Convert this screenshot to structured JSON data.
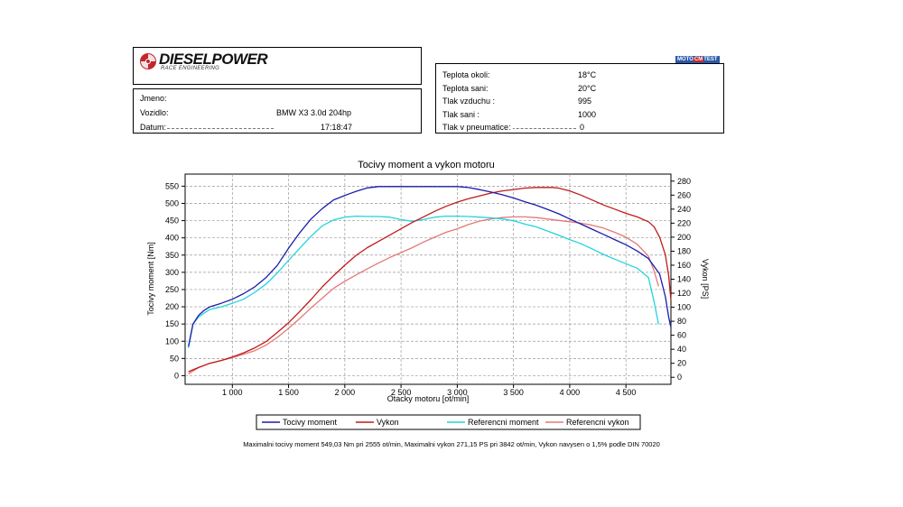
{
  "header": {
    "brand": "DIESELPOWER",
    "brand_sub": "RACE ENGINEERING",
    "badge": "MOTO",
    "badge_mid": "CM",
    "badge_end": "TEST"
  },
  "vehicle": {
    "jmeno_label": "Jmeno:",
    "jmeno_value": "",
    "vozidlo_label": "Vozidlo:",
    "vozidlo_value": "BMW X3 3.0d 204hp",
    "datum_label": "Datum:",
    "datum_value": "17:18:47"
  },
  "conditions": [
    {
      "label": "Teplota okoli:",
      "value": "18°C"
    },
    {
      "label": "Teplota sani:",
      "value": "20°C"
    },
    {
      "label": "Tlak vzduchu :",
      "value": "995"
    },
    {
      "label": "Tlak sani :",
      "value": "1000"
    },
    {
      "label": "Tlak v pneumatice:",
      "value": "0"
    }
  ],
  "colors": {
    "torque": "#1c1caa",
    "power": "#c01a1a",
    "ref_torque": "#22d4dc",
    "ref_power": "#e67878",
    "grid": "#9a9a9a"
  },
  "footer": "Maximalni tocivy moment 549,03 Nm pri 2555 ot/min,  Maximalni vykon 271,15 PS pri 3842 ot/min,  Vykon navysen o 1,5% podle DIN 70020",
  "chart_data": {
    "type": "line",
    "title": "Tocivy moment a vykon motoru",
    "xlabel": "Otacky motoru [ot/min]",
    "ylabel_left": "Tocivy moment [Nm]",
    "ylabel_right": "Vykon [PS]",
    "xlim": [
      580,
      4900
    ],
    "ylim_left": [
      -25,
      585
    ],
    "ylim_right": [
      -10,
      290
    ],
    "x_ticks": [
      1000,
      1500,
      2000,
      2500,
      3000,
      3500,
      4000,
      4500
    ],
    "x_tick_labels": [
      "1 000",
      "1 500",
      "2 000",
      "2 500",
      "3 000",
      "3 500",
      "4 000",
      "4 500"
    ],
    "y_ticks_left": [
      0,
      50,
      100,
      150,
      200,
      250,
      300,
      350,
      400,
      450,
      500,
      550
    ],
    "y_ticks_right": [
      0,
      20,
      40,
      60,
      80,
      100,
      120,
      140,
      160,
      180,
      200,
      220,
      240,
      260,
      280
    ],
    "grid": true,
    "legend_position": "bottom",
    "series": [
      {
        "name": "Tocivy moment",
        "axis": "left",
        "x": [
          610,
          650,
          700,
          750,
          800,
          900,
          1000,
          1100,
          1200,
          1300,
          1400,
          1500,
          1600,
          1700,
          1800,
          1900,
          2000,
          2100,
          2200,
          2300,
          2400,
          2500,
          2600,
          2700,
          2800,
          2900,
          3000,
          3100,
          3200,
          3300,
          3400,
          3500,
          3600,
          3700,
          3800,
          3900,
          4000,
          4100,
          4200,
          4300,
          4400,
          4500,
          4600,
          4700,
          4800,
          4850,
          4880,
          4900
        ],
        "y": [
          85,
          150,
          175,
          190,
          200,
          210,
          222,
          238,
          258,
          285,
          320,
          370,
          415,
          455,
          485,
          510,
          523,
          535,
          545,
          549,
          549,
          549,
          549,
          549,
          549,
          549,
          549,
          546,
          540,
          533,
          525,
          516,
          505,
          495,
          483,
          470,
          455,
          440,
          425,
          410,
          395,
          380,
          362,
          340,
          295,
          230,
          170,
          140
        ]
      },
      {
        "name": "Vykon",
        "axis": "right",
        "x": [
          610,
          700,
          800,
          900,
          1000,
          1100,
          1200,
          1300,
          1400,
          1500,
          1600,
          1700,
          1800,
          1900,
          2000,
          2100,
          2200,
          2300,
          2400,
          2500,
          2600,
          2700,
          2800,
          2900,
          3000,
          3100,
          3200,
          3300,
          3400,
          3500,
          3600,
          3700,
          3800,
          3850,
          3900,
          4000,
          4100,
          4200,
          4300,
          4400,
          4500,
          4600,
          4700,
          4750,
          4800,
          4850,
          4880,
          4900
        ],
        "y": [
          8,
          14,
          20,
          24,
          29,
          35,
          42,
          51,
          64,
          78,
          94,
          111,
          129,
          145,
          160,
          174,
          185,
          194,
          203,
          212,
          221,
          229,
          237,
          244,
          250,
          255,
          259,
          263,
          266,
          268,
          270,
          271,
          271,
          271,
          270,
          266,
          260,
          253,
          246,
          240,
          234,
          229,
          222,
          215,
          200,
          175,
          145,
          110
        ]
      },
      {
        "name": "Referencni moment",
        "axis": "left",
        "x": [
          610,
          650,
          700,
          750,
          800,
          900,
          1000,
          1100,
          1200,
          1300,
          1400,
          1500,
          1600,
          1700,
          1800,
          1900,
          2000,
          2100,
          2200,
          2300,
          2400,
          2500,
          2600,
          2700,
          2800,
          2900,
          3000,
          3100,
          3200,
          3300,
          3400,
          3500,
          3600,
          3700,
          3800,
          3900,
          4000,
          4100,
          4200,
          4300,
          4400,
          4500,
          4600,
          4700,
          4750,
          4790
        ],
        "y": [
          80,
          150,
          170,
          182,
          192,
          200,
          210,
          222,
          242,
          266,
          298,
          335,
          370,
          405,
          435,
          452,
          460,
          463,
          462,
          462,
          460,
          453,
          448,
          453,
          460,
          463,
          463,
          462,
          460,
          458,
          455,
          450,
          440,
          432,
          420,
          408,
          395,
          383,
          368,
          352,
          338,
          325,
          312,
          285,
          215,
          150
        ]
      },
      {
        "name": "Referencni vykon",
        "axis": "right",
        "x": [
          610,
          700,
          800,
          900,
          1000,
          1100,
          1200,
          1300,
          1400,
          1500,
          1600,
          1700,
          1800,
          1900,
          2000,
          2100,
          2200,
          2300,
          2400,
          2500,
          2600,
          2700,
          2800,
          2900,
          3000,
          3100,
          3200,
          3300,
          3400,
          3500,
          3600,
          3700,
          3800,
          3900,
          4000,
          4100,
          4200,
          4300,
          4400,
          4500,
          4600,
          4700,
          4750,
          4790
        ],
        "y": [
          5,
          14,
          20,
          24,
          28,
          33,
          38,
          46,
          57,
          70,
          84,
          99,
          113,
          127,
          137,
          146,
          155,
          163,
          171,
          178,
          185,
          193,
          200,
          207,
          212,
          218,
          223,
          226,
          228,
          229,
          229,
          228,
          226,
          224,
          222,
          220,
          217,
          213,
          207,
          200,
          190,
          173,
          152,
          130
        ]
      }
    ]
  }
}
